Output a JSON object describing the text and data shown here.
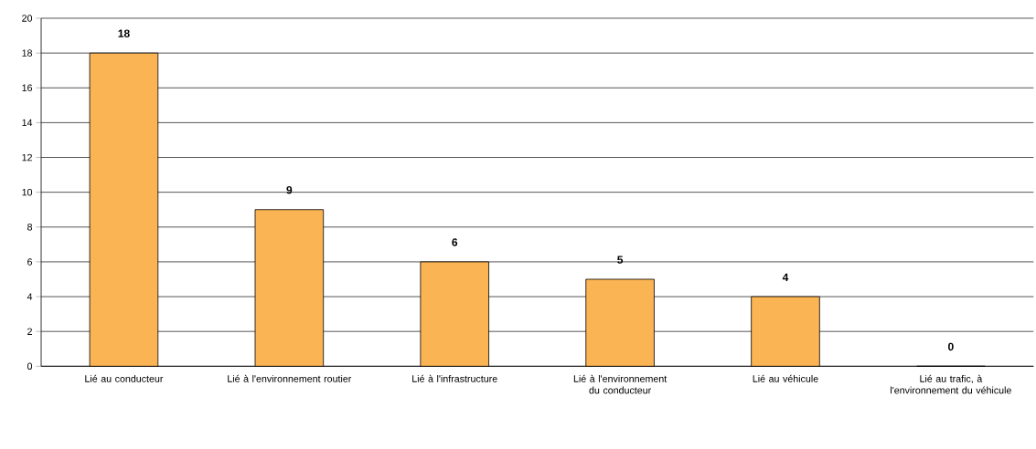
{
  "chart_data": {
    "type": "bar",
    "categories": [
      "Lié au conducteur",
      "Lié à l'environnement routier",
      "Lié à l'infrastructure",
      "Lié à l'environnement du conducteur",
      "Lié au véhicule",
      "Lié au trafic, à l'environnement du véhicule"
    ],
    "values": [
      18,
      9,
      6,
      5,
      4,
      0
    ],
    "color": "#fbb454",
    "ylim": [
      0,
      20
    ],
    "yticks": [
      0,
      2,
      4,
      6,
      8,
      10,
      12,
      14,
      16,
      18,
      20
    ],
    "grid": "y",
    "data_labels": true
  }
}
